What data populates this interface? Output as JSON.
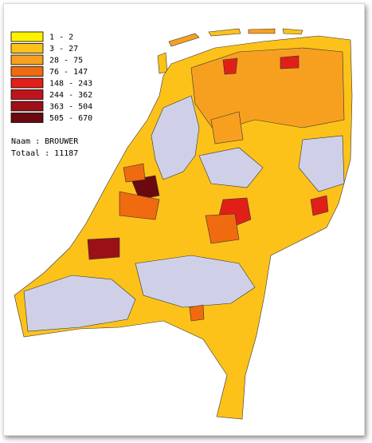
{
  "legend": [
    {
      "label": "1 - 2",
      "color": "#fff200"
    },
    {
      "label": "3 - 27",
      "color": "#fcc21a"
    },
    {
      "label": "28 - 75",
      "color": "#f7a020"
    },
    {
      "label": "76 - 147",
      "color": "#f06a10"
    },
    {
      "label": "148 - 243",
      "color": "#e02018"
    },
    {
      "label": "244 - 362",
      "color": "#c0141c"
    },
    {
      "label": "363 - 504",
      "color": "#9c1018"
    },
    {
      "label": "505 - 670",
      "color": "#6a0a0e"
    }
  ],
  "naam": "Naam : BROUWER",
  "totaal": "Totaal : 11187"
}
